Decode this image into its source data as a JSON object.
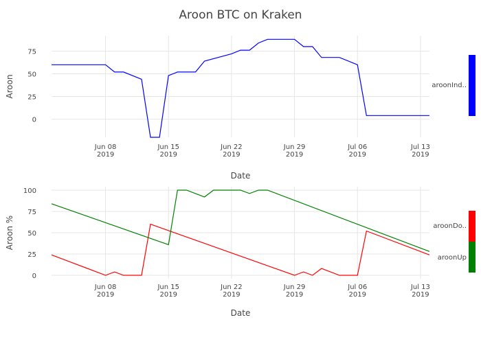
{
  "title": "Aroon BTC on Kraken",
  "colors": {
    "aroonIndicator": "#0000ff",
    "aroonDown": "#ff0000",
    "aroonUp": "#008000",
    "grid": "#e6e6e6"
  },
  "chart_data": [
    {
      "type": "line",
      "xlabel": "Date",
      "ylabel": "Aroon",
      "xlim": [
        "2019-06-02",
        "2019-07-14"
      ],
      "ylim": [
        -20,
        92
      ],
      "x_ticks": [
        {
          "date": "2019-06-08",
          "label": "Jun 08",
          "year": "2019"
        },
        {
          "date": "2019-06-15",
          "label": "Jun 15",
          "year": "2019"
        },
        {
          "date": "2019-06-22",
          "label": "Jun 22",
          "year": "2019"
        },
        {
          "date": "2019-06-29",
          "label": "Jun 29",
          "year": "2019"
        },
        {
          "date": "2019-07-06",
          "label": "Jul 06",
          "year": "2019"
        },
        {
          "date": "2019-07-13",
          "label": "Jul 13",
          "year": "2019"
        }
      ],
      "y_ticks": [
        0,
        25,
        50,
        75
      ],
      "legend_position": "right",
      "grid": true,
      "series": [
        {
          "name": "aroonInd..",
          "color": "#0000ff",
          "points": [
            [
              "2019-06-02",
              60
            ],
            [
              "2019-06-08",
              60
            ],
            [
              "2019-06-09",
              52
            ],
            [
              "2019-06-10",
              52
            ],
            [
              "2019-06-12",
              44
            ],
            [
              "2019-06-13",
              -20
            ],
            [
              "2019-06-14",
              -20
            ],
            [
              "2019-06-15",
              48
            ],
            [
              "2019-06-16",
              52
            ],
            [
              "2019-06-18",
              52
            ],
            [
              "2019-06-19",
              64
            ],
            [
              "2019-06-22",
              72
            ],
            [
              "2019-06-23",
              76
            ],
            [
              "2019-06-24",
              76
            ],
            [
              "2019-06-25",
              84
            ],
            [
              "2019-06-26",
              88
            ],
            [
              "2019-06-29",
              88
            ],
            [
              "2019-06-30",
              80
            ],
            [
              "2019-07-01",
              80
            ],
            [
              "2019-07-02",
              68
            ],
            [
              "2019-07-04",
              68
            ],
            [
              "2019-07-06",
              60
            ],
            [
              "2019-07-07",
              4
            ],
            [
              "2019-07-14",
              4
            ]
          ]
        }
      ]
    },
    {
      "type": "line",
      "xlabel": "Date",
      "ylabel": "Aroon %",
      "xlim": [
        "2019-06-02",
        "2019-07-14"
      ],
      "ylim": [
        -4,
        104
      ],
      "x_ticks": [
        {
          "date": "2019-06-08",
          "label": "Jun 08",
          "year": "2019"
        },
        {
          "date": "2019-06-15",
          "label": "Jun 15",
          "year": "2019"
        },
        {
          "date": "2019-06-22",
          "label": "Jun 22",
          "year": "2019"
        },
        {
          "date": "2019-06-29",
          "label": "Jun 29",
          "year": "2019"
        },
        {
          "date": "2019-07-06",
          "label": "Jul 06",
          "year": "2019"
        },
        {
          "date": "2019-07-13",
          "label": "Jul 13",
          "year": "2019"
        }
      ],
      "y_ticks": [
        0,
        25,
        50,
        75,
        100
      ],
      "legend_position": "right",
      "grid": true,
      "series": [
        {
          "name": "aroonDo..",
          "color": "#ff0000",
          "points": [
            [
              "2019-06-02",
              24
            ],
            [
              "2019-06-08",
              0
            ],
            [
              "2019-06-09",
              4
            ],
            [
              "2019-06-10",
              0
            ],
            [
              "2019-06-12",
              0
            ],
            [
              "2019-06-13",
              60
            ],
            [
              "2019-06-29",
              0
            ],
            [
              "2019-06-30",
              4
            ],
            [
              "2019-07-01",
              0
            ],
            [
              "2019-07-02",
              8
            ],
            [
              "2019-07-04",
              0
            ],
            [
              "2019-07-06",
              0
            ],
            [
              "2019-07-07",
              52
            ],
            [
              "2019-07-14",
              24
            ]
          ]
        },
        {
          "name": "aroonUp",
          "color": "#008000",
          "points": [
            [
              "2019-06-02",
              84
            ],
            [
              "2019-06-15",
              36
            ],
            [
              "2019-06-16",
              100
            ],
            [
              "2019-06-17",
              100
            ],
            [
              "2019-06-19",
              92
            ],
            [
              "2019-06-20",
              100
            ],
            [
              "2019-06-23",
              100
            ],
            [
              "2019-06-24",
              96
            ],
            [
              "2019-06-25",
              100
            ],
            [
              "2019-06-26",
              100
            ],
            [
              "2019-07-14",
              28
            ]
          ]
        }
      ]
    }
  ]
}
